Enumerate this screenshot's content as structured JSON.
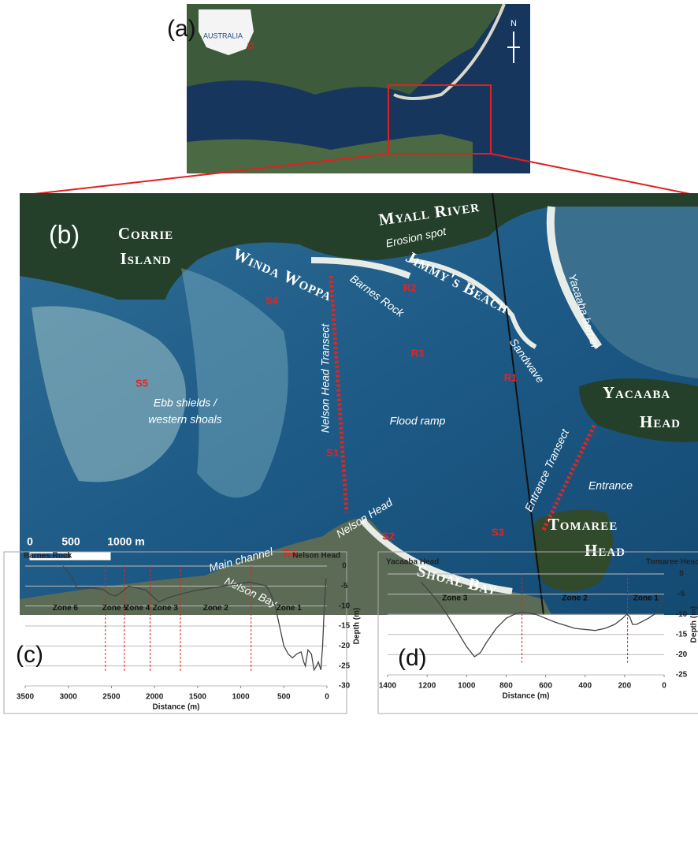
{
  "panel_a": {
    "label": "(a)",
    "inset_label": "AUSTRALIA",
    "north": "N"
  },
  "panel_b": {
    "label": "(b)",
    "labels": [
      "Myall River",
      "Corrie",
      "Island",
      "Erosion spot",
      "Winda Woppa",
      "Jimmy's Beach",
      "Barnes Rock",
      "Yacaaba barrier",
      "S4",
      "R2",
      "R3",
      "R1",
      "S5",
      "Sandwave",
      "Nelson Head Transect",
      "Yacaaba",
      "Head",
      "Ebb shields /",
      "western shoals",
      "Flood ramp",
      "S1",
      "Entrance Transect",
      "Entrance",
      "Nelson Head",
      "S2",
      "S3",
      "Tomaree",
      "Head",
      "Main channel",
      "R4",
      "Nelson Bay",
      "Shoal Bay"
    ],
    "scale_bar": [
      "0",
      "500",
      "1000 m"
    ]
  },
  "chart_data": [
    {
      "type": "line",
      "panel_label": "(c)",
      "header_labels": [
        "Barnes Rock",
        "Nelson Head"
      ],
      "x": [
        3060,
        2950,
        2900,
        2750,
        2600,
        2520,
        2450,
        2380,
        2300,
        2200,
        2100,
        2000,
        1950,
        1850,
        1700,
        1500,
        1200,
        900,
        800,
        700,
        650,
        600,
        550,
        500,
        450,
        400,
        350,
        300,
        270,
        250,
        220,
        180,
        150,
        120,
        100,
        70,
        50,
        30,
        10
      ],
      "values": [
        0,
        -3,
        -5.5,
        -5.5,
        -5.8,
        -7,
        -7.5,
        -6.5,
        -5,
        -5.5,
        -6,
        -8,
        -9,
        -8,
        -7,
        -6,
        -5,
        -4,
        -4.5,
        -5,
        -7,
        -10,
        -15,
        -20,
        -22,
        -23,
        -22,
        -21.5,
        -24,
        -25,
        -21,
        -22,
        -26,
        -25,
        -24,
        -26,
        -20,
        -10,
        -3
      ],
      "color": "#444",
      "xlim": [
        3500,
        0
      ],
      "xticks": [
        3500,
        3000,
        2500,
        2000,
        1500,
        1000,
        500,
        0
      ],
      "ylim": [
        -30,
        0
      ],
      "yticks": [
        0,
        -5,
        -10,
        -15,
        -20,
        -25,
        -30
      ],
      "xlabel": "Distance (m)",
      "ylabel": "Depth (m)",
      "grid": true,
      "zones": [
        "Zone 6",
        "Zone 5",
        "Zone 4",
        "Zone 3",
        "Zone 2",
        "Zone 1"
      ],
      "zone_boundaries": [
        2570,
        2350,
        2050,
        1700,
        880
      ]
    },
    {
      "type": "line",
      "panel_label": "(d)",
      "header_labels": [
        "Yacaaba Head",
        "Tomaree Head"
      ],
      "x": [
        1230,
        1150,
        1100,
        1050,
        1000,
        960,
        930,
        900,
        850,
        800,
        750,
        720,
        650,
        600,
        550,
        450,
        350,
        300,
        250,
        210,
        190,
        175,
        160,
        140,
        120,
        80,
        50,
        20,
        5
      ],
      "values": [
        -2,
        -6.5,
        -10,
        -14,
        -18,
        -20.5,
        -19.5,
        -17,
        -13.5,
        -11,
        -9.8,
        -9.5,
        -10,
        -11,
        -12,
        -13.5,
        -14,
        -13.5,
        -12.5,
        -11,
        -10,
        -10.5,
        -12.5,
        -12.5,
        -12,
        -11,
        -10,
        -8.5,
        -6
      ],
      "color": "#444",
      "xlim": [
        1400,
        0
      ],
      "xticks": [
        1400,
        1200,
        1000,
        800,
        600,
        400,
        200,
        0
      ],
      "ylim": [
        -25,
        0
      ],
      "yticks": [
        0,
        -5,
        -10,
        -15,
        -20,
        -25
      ],
      "xlabel": "Distance (m)",
      "ylabel": "Depth (m)",
      "grid": true,
      "zones": [
        "Zone 3",
        "Zone 2",
        "Zone 1"
      ],
      "zone_boundaries": [
        720,
        185
      ]
    }
  ]
}
